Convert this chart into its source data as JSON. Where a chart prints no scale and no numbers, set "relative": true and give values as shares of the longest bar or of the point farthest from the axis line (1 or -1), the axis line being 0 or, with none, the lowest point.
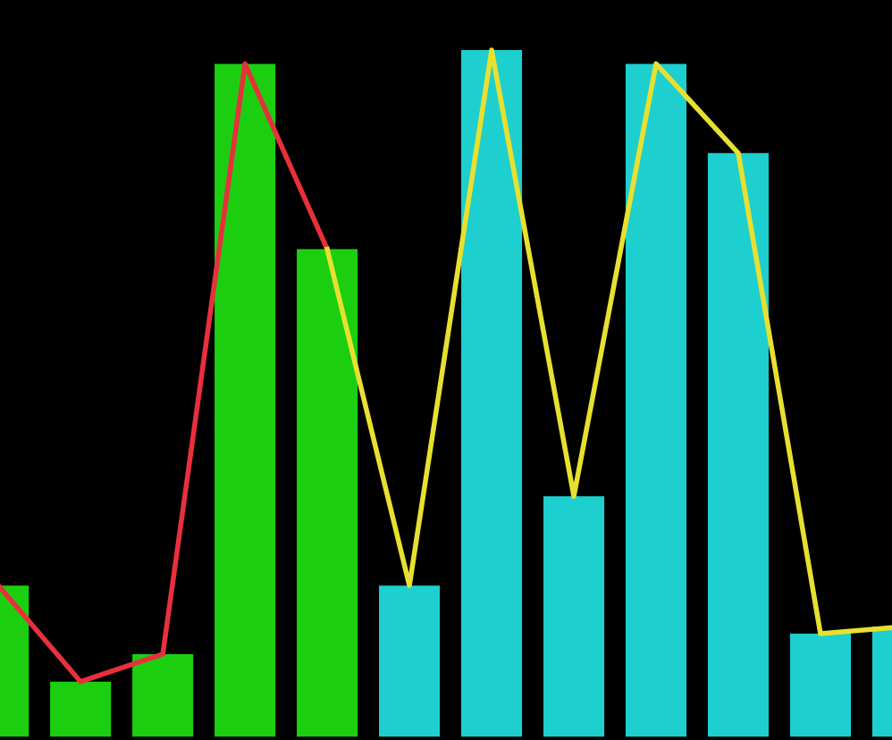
{
  "chart_data": [
    {
      "type": "bar",
      "relative": true,
      "categories": [
        null,
        null,
        null,
        null,
        null,
        null,
        null,
        null,
        null,
        null,
        null,
        null
      ],
      "colors": [
        "#1bcf10",
        "#1bcf10",
        "#1bcf10",
        "#1bcf10",
        "#1bcf10",
        "#1ecfcf",
        "#1ecfcf",
        "#1ecfcf",
        "#1ecfcf",
        "#1ecfcf",
        "#1ecfcf",
        "#1ecfcf"
      ],
      "values": [
        0.22,
        0.08,
        0.12,
        0.98,
        0.71,
        0.22,
        1.0,
        0.35,
        0.98,
        0.85,
        0.15,
        0.16
      ]
    },
    {
      "type": "line",
      "relative": true,
      "categories": [
        null,
        null,
        null,
        null,
        null,
        null,
        null,
        null,
        null,
        null,
        null,
        null
      ],
      "series": [
        {
          "color": "#e8303c",
          "values": [
            0.22,
            0.08,
            0.12,
            0.98,
            0.71,
            null,
            null,
            null,
            null,
            null,
            null,
            null
          ]
        },
        {
          "color": "#e8e030",
          "values": [
            null,
            null,
            null,
            null,
            0.71,
            0.22,
            1.0,
            0.35,
            0.98,
            0.85,
            0.15,
            0.16
          ]
        }
      ]
    }
  ]
}
